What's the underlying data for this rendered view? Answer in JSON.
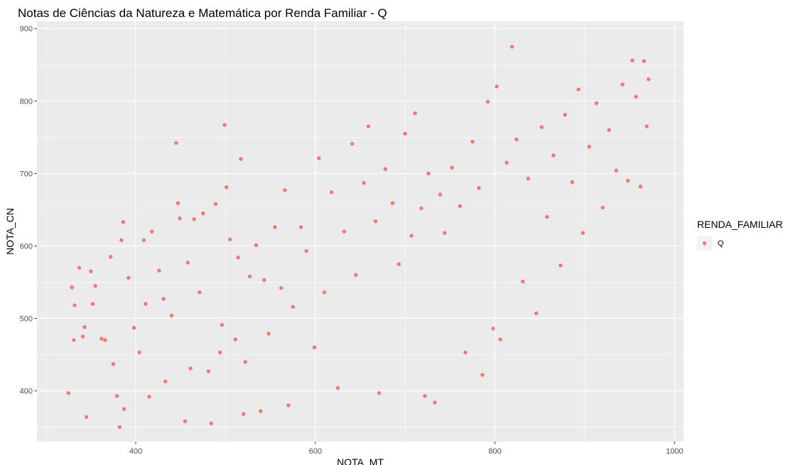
{
  "chart_data": {
    "type": "scatter",
    "title": "Notas de Ciências da Natureza e Matemática por Renda Familiar - Q",
    "xlabel": "NOTA_MT",
    "ylabel": "NOTA_CN",
    "xlim": [
      290,
      1010
    ],
    "ylim": [
      330,
      910
    ],
    "x_ticks": [
      400,
      600,
      800,
      1000
    ],
    "y_ticks": [
      400,
      500,
      600,
      700,
      800,
      900
    ],
    "grid": true,
    "legend": {
      "title": "RENDA_FAMILIAR",
      "placement": "right",
      "entries": [
        "Q"
      ]
    },
    "colors": {
      "series": "#F8766D",
      "panel": "#EBEBEB",
      "grid": "#FFFFFF"
    },
    "series": [
      {
        "name": "Q",
        "points": [
          [
            325,
            397
          ],
          [
            329,
            543
          ],
          [
            331,
            470
          ],
          [
            332,
            518
          ],
          [
            337,
            570
          ],
          [
            341,
            475
          ],
          [
            343,
            488
          ],
          [
            345,
            364
          ],
          [
            350,
            565
          ],
          [
            352,
            520
          ],
          [
            355,
            545
          ],
          [
            362,
            472
          ],
          [
            366,
            470
          ],
          [
            372,
            585
          ],
          [
            375,
            437
          ],
          [
            379,
            393
          ],
          [
            382,
            350
          ],
          [
            384,
            608
          ],
          [
            386,
            633
          ],
          [
            387,
            375
          ],
          [
            392,
            556
          ],
          [
            398,
            487
          ],
          [
            404,
            453
          ],
          [
            409,
            608
          ],
          [
            411,
            520
          ],
          [
            415,
            392
          ],
          [
            418,
            620
          ],
          [
            426,
            566
          ],
          [
            431,
            527
          ],
          [
            433,
            413
          ],
          [
            440,
            504
          ],
          [
            445,
            742
          ],
          [
            447,
            659
          ],
          [
            449,
            638
          ],
          [
            455,
            358
          ],
          [
            458,
            577
          ],
          [
            461,
            431
          ],
          [
            465,
            637
          ],
          [
            471,
            536
          ],
          [
            475,
            645
          ],
          [
            481,
            427
          ],
          [
            484,
            355
          ],
          [
            489,
            658
          ],
          [
            494,
            453
          ],
          [
            496,
            491
          ],
          [
            499,
            767
          ],
          [
            501,
            681
          ],
          [
            505,
            609
          ],
          [
            511,
            471
          ],
          [
            514,
            584
          ],
          [
            517,
            720
          ],
          [
            520,
            368
          ],
          [
            522,
            440
          ],
          [
            527,
            558
          ],
          [
            534,
            601
          ],
          [
            539,
            372
          ],
          [
            543,
            553
          ],
          [
            548,
            479
          ],
          [
            555,
            626
          ],
          [
            562,
            542
          ],
          [
            566,
            677
          ],
          [
            570,
            380
          ],
          [
            575,
            516
          ],
          [
            584,
            626
          ],
          [
            590,
            593
          ],
          [
            599,
            460
          ],
          [
            604,
            721
          ],
          [
            610,
            536
          ],
          [
            618,
            674
          ],
          [
            625,
            404
          ],
          [
            632,
            620
          ],
          [
            641,
            741
          ],
          [
            645,
            560
          ],
          [
            654,
            687
          ],
          [
            659,
            765
          ],
          [
            667,
            634
          ],
          [
            671,
            397
          ],
          [
            678,
            706
          ],
          [
            686,
            659
          ],
          [
            693,
            575
          ],
          [
            700,
            755
          ],
          [
            707,
            614
          ],
          [
            711,
            783
          ],
          [
            718,
            652
          ],
          [
            722,
            393
          ],
          [
            726,
            700
          ],
          [
            733,
            384
          ],
          [
            739,
            671
          ],
          [
            744,
            618
          ],
          [
            752,
            708
          ],
          [
            761,
            655
          ],
          [
            767,
            453
          ],
          [
            775,
            744
          ],
          [
            782,
            680
          ],
          [
            786,
            422
          ],
          [
            792,
            799
          ],
          [
            798,
            486
          ],
          [
            802,
            820
          ],
          [
            806,
            471
          ],
          [
            813,
            715
          ],
          [
            819,
            875
          ],
          [
            824,
            747
          ],
          [
            831,
            551
          ],
          [
            837,
            693
          ],
          [
            846,
            507
          ],
          [
            852,
            764
          ],
          [
            858,
            640
          ],
          [
            865,
            725
          ],
          [
            873,
            573
          ],
          [
            878,
            781
          ],
          [
            886,
            688
          ],
          [
            893,
            816
          ],
          [
            898,
            618
          ],
          [
            905,
            737
          ],
          [
            913,
            797
          ],
          [
            920,
            653
          ],
          [
            927,
            760
          ],
          [
            935,
            704
          ],
          [
            942,
            823
          ],
          [
            948,
            690
          ],
          [
            953,
            856
          ],
          [
            957,
            806
          ],
          [
            962,
            682
          ],
          [
            966,
            855
          ],
          [
            969,
            765
          ],
          [
            971,
            830
          ]
        ]
      }
    ]
  }
}
